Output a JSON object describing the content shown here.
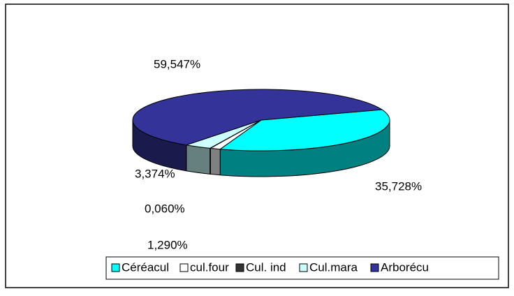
{
  "chart_data": {
    "type": "pie3d",
    "categories": [
      "Céréacul",
      "cul.four",
      "Cul. ind",
      "Cul.mara",
      "Arborécu"
    ],
    "values": [
      35.728,
      1.29,
      0.06,
      3.374,
      59.547
    ],
    "value_labels": [
      "35,728%",
      "1,290%",
      "0,060%",
      "3,374%",
      "59,547%"
    ],
    "colors": [
      "#00ffff",
      "#ffffff",
      "#333333",
      "#ccffff",
      "#333399"
    ],
    "legend": "bottom"
  }
}
